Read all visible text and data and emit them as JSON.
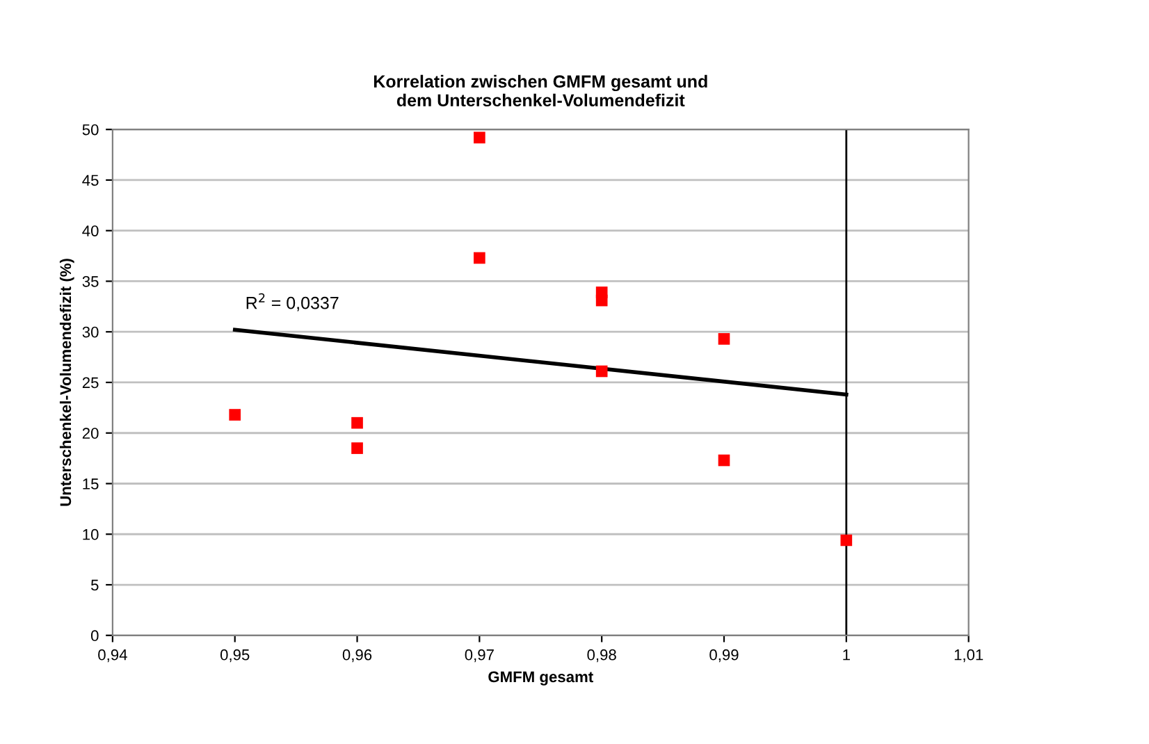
{
  "chart_data": {
    "type": "scatter",
    "title": "Korrelation zwischen GMFM gesamt und\ndem Unterschenkel-Volumendefizit",
    "xlabel": "GMFM gesamt",
    "ylabel": "Unterschenkel-Volumendefizit (%)",
    "series": [
      {
        "marker": "square",
        "color": "#ff0000",
        "x": [
          0.95,
          0.96,
          0.96,
          0.97,
          0.97,
          0.98,
          0.98,
          0.98,
          0.99,
          0.99,
          1.0
        ],
        "values": [
          21.8,
          21.0,
          18.5,
          49.2,
          37.3,
          33.9,
          33.1,
          26.1,
          29.3,
          17.3,
          9.4
        ]
      },
      {
        "type": "line",
        "color": "#000000",
        "x": [
          0.95,
          1.0
        ],
        "values": [
          30.2,
          23.8
        ]
      }
    ],
    "annotations": [
      "R$^{2}$ = 0,0337"
    ],
    "ref_lines": [
      {
        "axis": "x",
        "value": 1.0,
        "color": "#000000"
      }
    ],
    "xlim": [
      0.94,
      1.01
    ],
    "xticks": [
      {
        "value": 0.94,
        "label": "0,94"
      },
      {
        "value": 0.95,
        "label": "0,95"
      },
      {
        "value": 0.96,
        "label": "0,96"
      },
      {
        "value": 0.97,
        "label": "0,97"
      },
      {
        "value": 0.98,
        "label": "0,98"
      },
      {
        "value": 0.99,
        "label": "0,99"
      },
      1,
      {
        "value": 1.01,
        "label": "1,01"
      }
    ],
    "ylim": [
      0,
      50
    ],
    "yticks": [
      0,
      5,
      10,
      15,
      20,
      25,
      30,
      35,
      40,
      45,
      50
    ],
    "grid": "y",
    "legend": false
  }
}
